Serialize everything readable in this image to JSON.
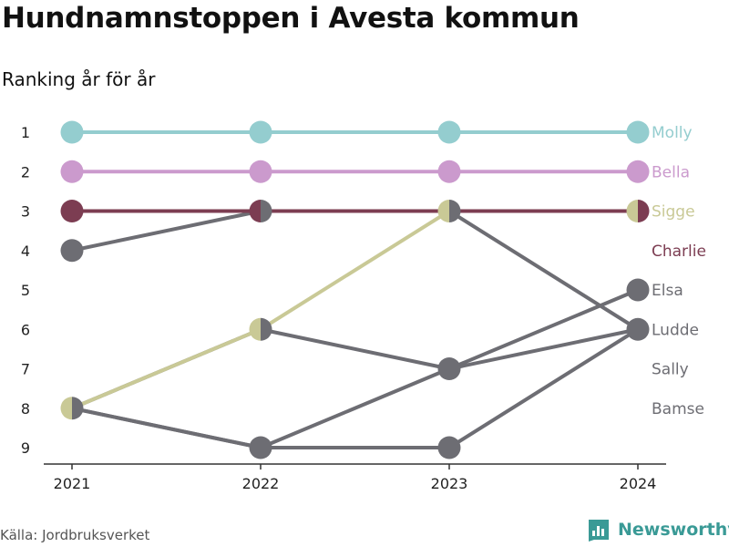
{
  "title": "Hundnamnstoppen i Avesta kommun",
  "subtitle": "Ranking år för år",
  "source": "Källa: Jordbruksverket",
  "brand": {
    "name": "Newsworthy",
    "icon": "newsworthy-logo-icon"
  },
  "chart_data": {
    "type": "line",
    "x": [
      2021,
      2022,
      2023,
      2024
    ],
    "y_ticks": [
      1,
      2,
      3,
      4,
      5,
      6,
      7,
      8,
      9
    ],
    "ylim": [
      1,
      9
    ],
    "y_reversed": true,
    "grid": false,
    "series": [
      {
        "name": "Molly",
        "ranks": [
          1,
          1,
          1,
          1
        ],
        "color": "#94cdcf"
      },
      {
        "name": "Bella",
        "ranks": [
          2,
          2,
          2,
          2
        ],
        "color": "#cb9acd"
      },
      {
        "name": "Sigge",
        "ranks": [
          8,
          6,
          3,
          3
        ],
        "color": "#c9c996"
      },
      {
        "name": "Charlie",
        "ranks": [
          3,
          3,
          3,
          3
        ],
        "color": "#7c3d52"
      },
      {
        "name": "Elsa",
        "ranks": [
          8,
          9,
          7,
          5
        ],
        "color": "#6d6d73"
      },
      {
        "name": "Ludde",
        "ranks": [
          4,
          3,
          3,
          6
        ],
        "color": "#6d6d73"
      },
      {
        "name": "Sally",
        "ranks": [
          8,
          6,
          7,
          6
        ],
        "color": "#6d6d73"
      },
      {
        "name": "Bamse",
        "ranks": [
          8,
          9,
          9,
          6
        ],
        "color": "#6d6d73"
      }
    ]
  }
}
